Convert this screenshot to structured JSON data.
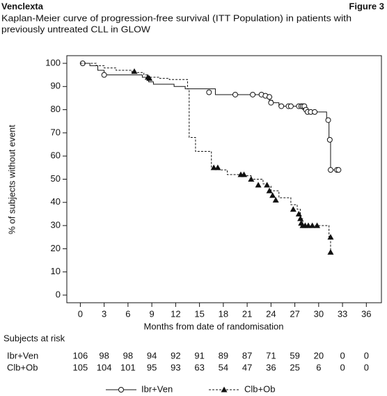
{
  "chart_data": {
    "type": "step",
    "brand": "Venclexta",
    "figure_label": "Figure 3",
    "title_lines": [
      "Kaplan-Meier curve of progression-free survival (ITT Population) in patients with",
      "previously untreated CLL in GLOW"
    ],
    "x_label": "Months from date of randomisation",
    "y_label": "% of subjects without event",
    "xlim": [
      -1.7,
      37.9
    ],
    "ylim": [
      -3.3,
      103.3
    ],
    "xticks": [
      0,
      3,
      6,
      9,
      12,
      15,
      18,
      21,
      24,
      27,
      30,
      33,
      36
    ],
    "yticks": [
      0,
      10,
      20,
      30,
      40,
      50,
      60,
      70,
      80,
      90,
      100
    ],
    "series": [
      {
        "name": "Ibr+Ven",
        "color": "#111111",
        "dashed": false,
        "marker": "circle",
        "x": [
          0,
          1.2,
          2.2,
          3,
          7.8,
          8.6,
          9.2,
          11.8,
          13.2,
          17,
          23.8,
          24.2,
          25,
          27.5,
          28,
          28.3,
          31,
          31.3,
          31.5,
          32.5
        ],
        "values": [
          100,
          99,
          97,
          95,
          94,
          92,
          91,
          90,
          89,
          86.5,
          84,
          83,
          81.5,
          81,
          80,
          79,
          76,
          67,
          54,
          54
        ],
        "censored_x": [
          0.3,
          3,
          16.2,
          19.5,
          21.7,
          22.8,
          23.3,
          23.8,
          24.0,
          25.3,
          26.2,
          26.5,
          27.5,
          27.8,
          28,
          28.2,
          28.4,
          28.6,
          29,
          29.5,
          31.2,
          31.4,
          31.5,
          32.3,
          32.5
        ],
        "censored_values": [
          100,
          95,
          87.5,
          86.5,
          86.5,
          86.5,
          86,
          85.5,
          83,
          81.5,
          81.5,
          81.5,
          81.5,
          81.5,
          81.5,
          81.5,
          80,
          79,
          79,
          79,
          75.5,
          67,
          54,
          54,
          54
        ]
      },
      {
        "name": "Clb+Ob",
        "color": "#111111",
        "dashed": true,
        "marker": "triangle",
        "x": [
          0,
          2,
          3,
          4.5,
          6.5,
          8,
          8.5,
          10,
          11.2,
          13.5,
          13.7,
          14.5,
          16.5,
          17.5,
          18.5,
          20.5,
          21.5,
          23,
          23.5,
          24,
          25,
          26.5,
          27.3,
          27.7,
          28,
          31.3,
          31.5
        ],
        "values": [
          100,
          99,
          98,
          97,
          96,
          95,
          94,
          93.5,
          93,
          89,
          68,
          62,
          55,
          54,
          52,
          51.5,
          50,
          48,
          47,
          45,
          42,
          39,
          37,
          33,
          30,
          25,
          18
        ],
        "censored_x": [
          6.8,
          8.5,
          8.7,
          16.8,
          17.3,
          20.2,
          20.6,
          21.5,
          22.4,
          23.5,
          23.8,
          24.2,
          24.6,
          26.8,
          27.5,
          27.7,
          27.8,
          28,
          28.3,
          28.7,
          29.2,
          29.8,
          31.5,
          31.5
        ],
        "censored_values": [
          96.5,
          94,
          93.5,
          55,
          55,
          52,
          52,
          50,
          47.5,
          47.5,
          45,
          43,
          41,
          37,
          35,
          33,
          31,
          30,
          30,
          30,
          30,
          30,
          25,
          18.5
        ]
      }
    ],
    "risk_table": {
      "title": "Subjects at risk",
      "rows": [
        {
          "name": "Ibr+Ven",
          "values": [
            106,
            98,
            98,
            94,
            92,
            91,
            89,
            87,
            71,
            59,
            20,
            0,
            0
          ]
        },
        {
          "name": "Clb+Ob",
          "values": [
            105,
            104,
            101,
            95,
            93,
            63,
            54,
            47,
            36,
            25,
            6,
            0,
            0
          ]
        }
      ]
    }
  }
}
